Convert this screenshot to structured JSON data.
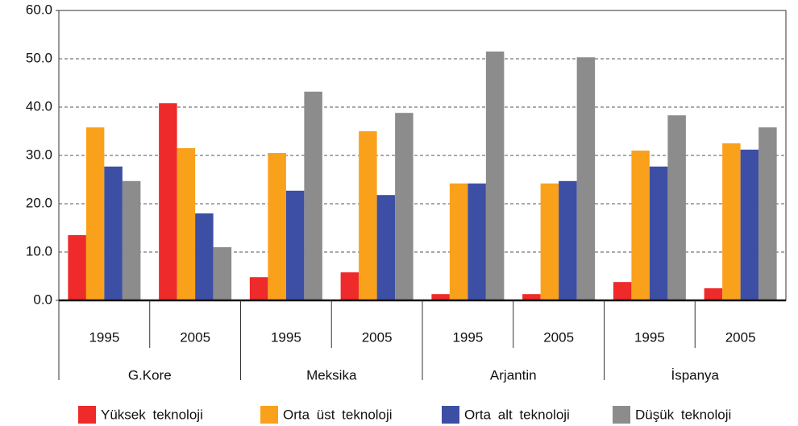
{
  "chart_data": {
    "type": "bar",
    "categories": [
      "1995",
      "2005",
      "1995",
      "2005",
      "1995",
      "2005",
      "1995",
      "2005"
    ],
    "category_groups": [
      "G.Kore",
      "Meksika",
      "Arjantin",
      "İspanya"
    ],
    "series": [
      {
        "name": "Yüksek teknoloji",
        "color": "#ee2a2a",
        "values": [
          13.5,
          40.8,
          4.8,
          5.8,
          1.3,
          1.3,
          3.8,
          2.5
        ]
      },
      {
        "name": "Orta üst teknoloji",
        "color": "#f9a11b",
        "values": [
          35.8,
          31.5,
          30.5,
          35.0,
          24.2,
          24.2,
          31.0,
          32.5
        ]
      },
      {
        "name": "Orta alt teknoloji",
        "color": "#3c4fa5",
        "values": [
          27.7,
          18.0,
          22.7,
          21.8,
          24.2,
          24.7,
          27.7,
          31.2
        ]
      },
      {
        "name": "Düşük teknoloji",
        "color": "#8c8c8c",
        "values": [
          24.7,
          11.0,
          43.2,
          38.8,
          51.5,
          50.3,
          38.3,
          35.8
        ]
      }
    ],
    "ylim": [
      0,
      60
    ],
    "yticks": [
      {
        "value": 0,
        "label": "0.0"
      },
      {
        "value": 10,
        "label": "10.0"
      },
      {
        "value": 20,
        "label": "20.0"
      },
      {
        "value": 30,
        "label": "30.0"
      },
      {
        "value": 40,
        "label": "40.0"
      },
      {
        "value": 50,
        "label": "50.0"
      },
      {
        "value": 60,
        "label": "60.0"
      }
    ],
    "grid": true,
    "legend": "bottom"
  }
}
